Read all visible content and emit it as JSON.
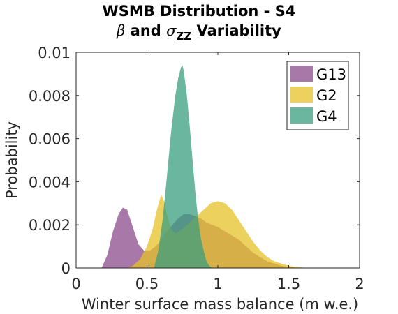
{
  "title": {
    "line1": "WSMB Distribution - S4",
    "line2_beta": "β",
    "line2_and": " and ",
    "line2_sigma": "σ",
    "line2_sub": "ZZ",
    "line2_rest": " Variability"
  },
  "chart_data": {
    "type": "area",
    "title": "WSMB Distribution - S4 β and σZZ Variability",
    "xlabel": "Winter surface mass balance (m w.e.)",
    "ylabel": "Probability",
    "xlim": [
      0,
      2
    ],
    "ylim": [
      0,
      0.01
    ],
    "x_ticks": [
      0,
      0.5,
      1,
      1.5,
      2
    ],
    "x_tick_labels": [
      "0",
      "0.5",
      "1",
      "1.5",
      "2"
    ],
    "y_ticks": [
      0,
      0.002,
      0.004,
      0.006,
      0.008,
      0.01
    ],
    "y_tick_labels": [
      "0",
      "0.002",
      "0.004",
      "0.006",
      "0.008",
      "0.01"
    ],
    "grid": false,
    "legend_position": "top-right",
    "series": [
      {
        "name": "G13",
        "color": "#8b4c8b",
        "x": [
          0.18,
          0.22,
          0.26,
          0.3,
          0.33,
          0.36,
          0.4,
          0.44,
          0.48,
          0.52,
          0.56,
          0.6,
          0.64,
          0.68,
          0.72,
          0.76,
          0.8,
          0.84,
          0.88,
          0.92,
          0.96,
          1.0,
          1.05,
          1.1,
          1.15,
          1.2,
          1.25,
          1.3,
          1.35,
          1.4,
          1.45,
          1.5,
          1.55,
          1.6
        ],
        "values": [
          0,
          0.0006,
          0.0017,
          0.0025,
          0.0028,
          0.0027,
          0.0019,
          0.0011,
          0.0008,
          0.0008,
          0.001,
          0.0013,
          0.0017,
          0.002,
          0.0023,
          0.0025,
          0.0025,
          0.0024,
          0.0023,
          0.0021,
          0.002,
          0.0019,
          0.0017,
          0.0015,
          0.0013,
          0.001,
          0.0007,
          0.0005,
          0.0003,
          0.0002,
          0.0001,
          5e-05,
          2e-05,
          0
        ]
      },
      {
        "name": "G2",
        "color": "#e6c229",
        "x": [
          0.36,
          0.4,
          0.45,
          0.5,
          0.54,
          0.57,
          0.6,
          0.62,
          0.64,
          0.67,
          0.7,
          0.75,
          0.8,
          0.85,
          0.9,
          0.95,
          1.0,
          1.05,
          1.1,
          1.15,
          1.2,
          1.25,
          1.3,
          1.35,
          1.4,
          1.45,
          1.5,
          1.55,
          1.6,
          1.65
        ],
        "values": [
          0,
          0.0001,
          0.0004,
          0.001,
          0.0018,
          0.0027,
          0.0034,
          0.0031,
          0.0025,
          0.0018,
          0.0016,
          0.0018,
          0.0021,
          0.0024,
          0.0027,
          0.003,
          0.0031,
          0.003,
          0.0027,
          0.0022,
          0.0017,
          0.0012,
          0.0008,
          0.0005,
          0.0003,
          0.0002,
          0.0001,
          5e-05,
          2e-05,
          0
        ]
      },
      {
        "name": "G4",
        "color": "#3a9e7e",
        "x": [
          0.55,
          0.58,
          0.61,
          0.64,
          0.67,
          0.7,
          0.72,
          0.74,
          0.75,
          0.76,
          0.78,
          0.8,
          0.82,
          0.84,
          0.86,
          0.88,
          0.9,
          0.92,
          0.94,
          0.96
        ],
        "values": [
          0,
          0.0008,
          0.0022,
          0.0042,
          0.0063,
          0.008,
          0.0088,
          0.0093,
          0.0094,
          0.0091,
          0.0081,
          0.0067,
          0.0051,
          0.0036,
          0.0023,
          0.0014,
          0.0008,
          0.0003,
          0.0001,
          0
        ]
      }
    ]
  }
}
